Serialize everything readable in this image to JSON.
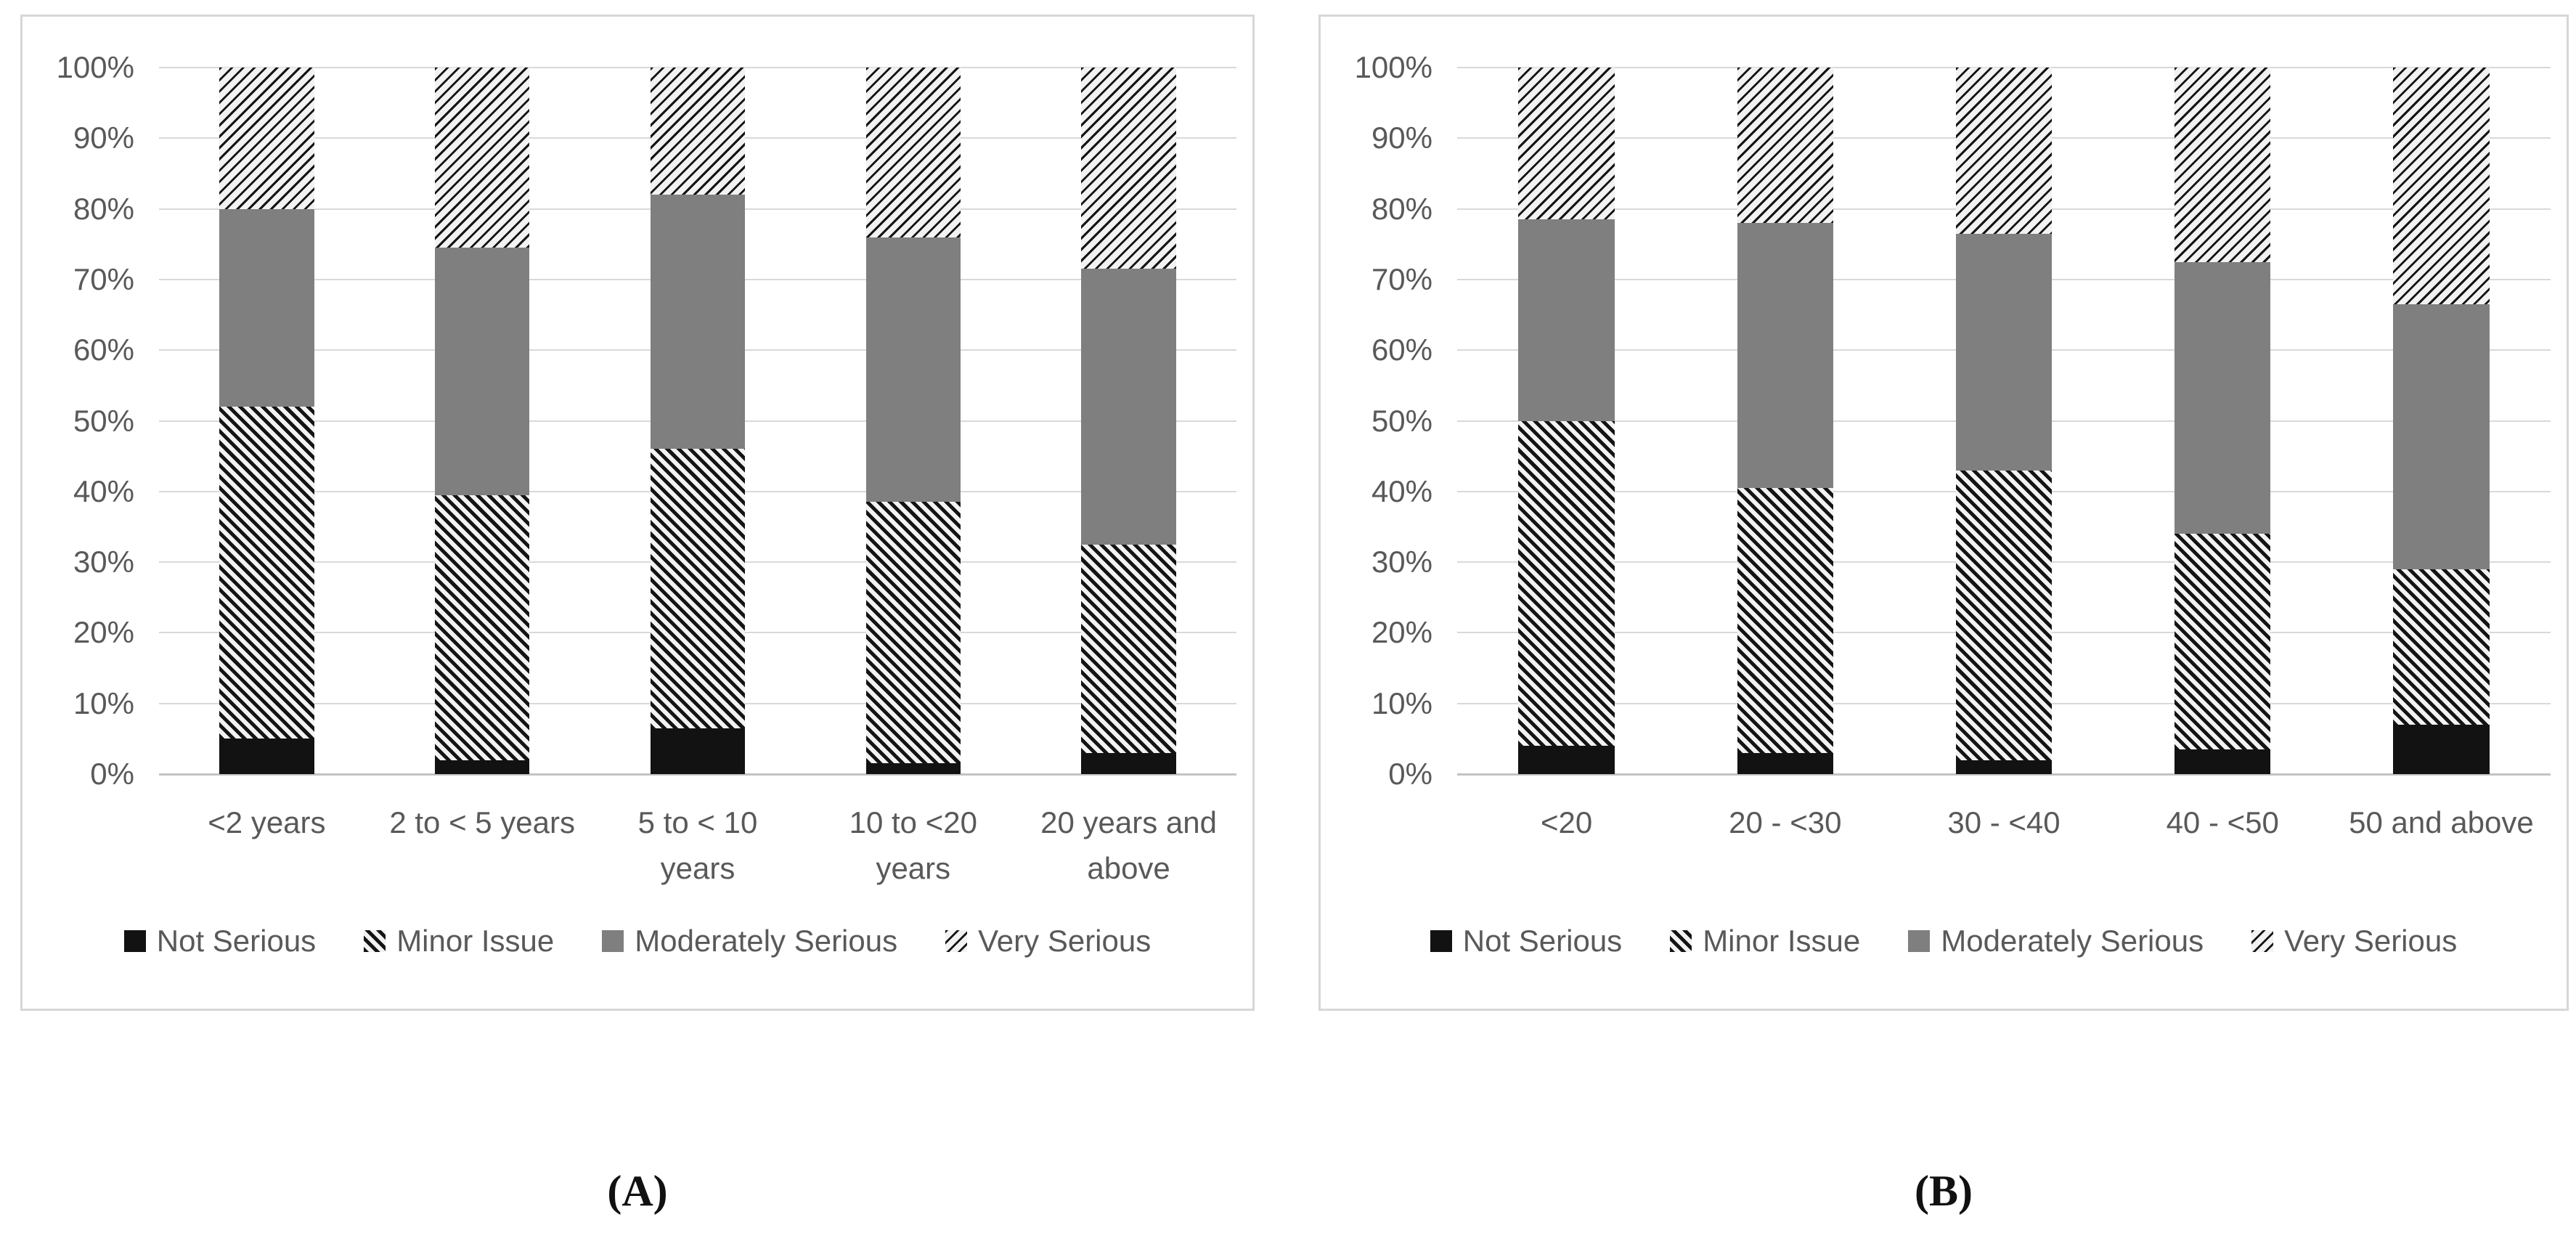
{
  "figure": {
    "caption_a": "(A)",
    "caption_b": "(B)"
  },
  "colors": {
    "axis_text": "#595959",
    "gridline": "#d9d9d9",
    "axis_line": "#c3c3c3",
    "panel_border": "#d7d7d7",
    "not_serious_black": "#121212",
    "moderately_serious_gray": "#7f7f7f",
    "hatch_line": "#141414",
    "hatch_background": "#f2f2f2"
  },
  "y_ticks": [
    "100%",
    "90%",
    "80%",
    "70%",
    "60%",
    "50%",
    "40%",
    "30%",
    "20%",
    "10%",
    "0%"
  ],
  "chart_data": [
    {
      "id": "A",
      "type": "bar",
      "subtype": "100%-stacked-column",
      "panel_label": "(A)",
      "categories": [
        "<2 years",
        "2 to < 5 years",
        "5 to < 10\nyears",
        "10 to <20\nyears",
        "20 years and\nabove"
      ],
      "series": [
        {
          "name": "Not Serious",
          "pattern": "solid-black",
          "values": [
            5,
            2,
            6.5,
            1.5,
            3
          ]
        },
        {
          "name": "Minor Issue",
          "pattern": "hatch-backslash",
          "values": [
            47,
            37.5,
            39.5,
            37,
            29.5
          ]
        },
        {
          "name": "Moderately Serious",
          "pattern": "solid-gray",
          "values": [
            28,
            35,
            36,
            37.5,
            39
          ]
        },
        {
          "name": "Very Serious",
          "pattern": "hatch-slash",
          "values": [
            20,
            25.5,
            18,
            24,
            28.5
          ]
        }
      ],
      "xlabel": "",
      "ylabel": "",
      "ylim": [
        0,
        100
      ],
      "grid": true,
      "legend_position": "bottom"
    },
    {
      "id": "B",
      "type": "bar",
      "subtype": "100%-stacked-column",
      "panel_label": "(B)",
      "categories": [
        "<20",
        "20 - <30",
        "30 - <40",
        "40 - <50",
        "50 and above"
      ],
      "series": [
        {
          "name": "Not Serious",
          "pattern": "solid-black",
          "values": [
            4,
            3,
            2,
            3.5,
            7
          ]
        },
        {
          "name": "Minor Issue",
          "pattern": "hatch-backslash",
          "values": [
            46,
            37.5,
            41,
            30.5,
            22
          ]
        },
        {
          "name": "Moderately Serious",
          "pattern": "solid-gray",
          "values": [
            28.5,
            37.5,
            33.5,
            38.5,
            37.5
          ]
        },
        {
          "name": "Very Serious",
          "pattern": "hatch-slash",
          "values": [
            21.5,
            22,
            23.5,
            27.5,
            33.5
          ]
        }
      ],
      "xlabel": "",
      "ylabel": "",
      "ylim": [
        0,
        100
      ],
      "grid": true,
      "legend_position": "bottom"
    }
  ]
}
